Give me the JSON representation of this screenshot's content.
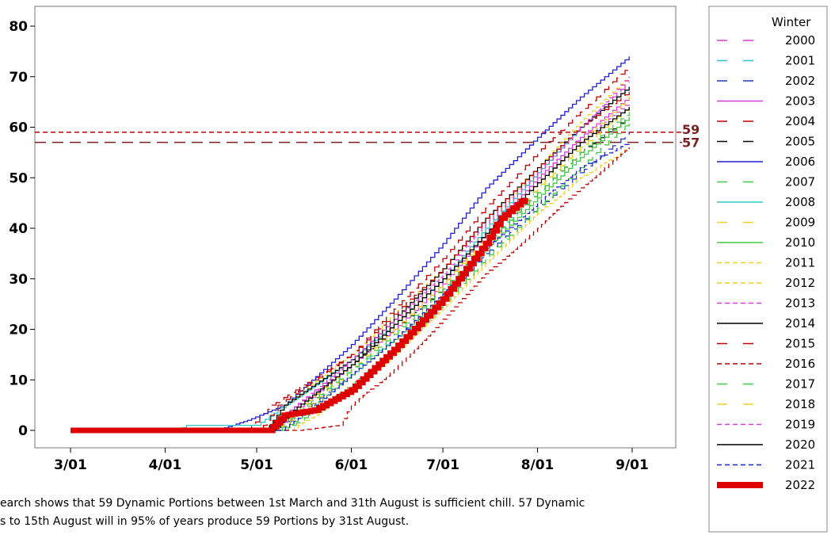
{
  "chart_data": {
    "type": "line",
    "title": "",
    "xlabel": "",
    "ylabel": "",
    "x_ticks": [
      "3/01",
      "4/01",
      "5/01",
      "6/01",
      "7/01",
      "8/01",
      "9/01"
    ],
    "y_ticks": [
      0,
      10,
      20,
      30,
      40,
      50,
      60,
      70,
      80
    ],
    "xlim": [
      "2/20",
      "9/15"
    ],
    "ylim": [
      -5,
      84
    ],
    "grid": false,
    "legend_position": "right",
    "legend_title": "Winter",
    "reference_lines": [
      {
        "value": 59,
        "label": "59",
        "color": "#c00000",
        "style": "short-dash"
      },
      {
        "value": 57,
        "label": "57",
        "color": "#7a1f1f",
        "style": "long-dash"
      }
    ],
    "series": [
      {
        "name": "2000",
        "color": "#d63cd6",
        "style": "long-dash",
        "end_date": "8/31",
        "points": [
          [
            "3/01",
            0
          ],
          [
            "5/06",
            0
          ],
          [
            "5/12",
            4
          ],
          [
            "6/01",
            14
          ],
          [
            "6/15",
            21
          ],
          [
            "7/01",
            30
          ],
          [
            "7/15",
            40
          ],
          [
            "8/01",
            51
          ],
          [
            "8/15",
            60
          ],
          [
            "8/31",
            69
          ]
        ]
      },
      {
        "name": "2001",
        "color": "#2ec7c7",
        "style": "long-dash",
        "end_date": "8/31",
        "points": [
          [
            "3/01",
            0
          ],
          [
            "5/08",
            0
          ],
          [
            "5/15",
            4
          ],
          [
            "6/01",
            12
          ],
          [
            "6/15",
            18
          ],
          [
            "7/01",
            27
          ],
          [
            "7/15",
            37
          ],
          [
            "8/01",
            48
          ],
          [
            "8/15",
            56
          ],
          [
            "8/31",
            64
          ]
        ]
      },
      {
        "name": "2002",
        "color": "#1c3fbf",
        "style": "long-dash",
        "end_date": "8/31",
        "points": [
          [
            "3/01",
            0
          ],
          [
            "5/07",
            0
          ],
          [
            "5/14",
            3
          ],
          [
            "6/01",
            11
          ],
          [
            "6/15",
            18
          ],
          [
            "7/01",
            26
          ],
          [
            "7/15",
            35
          ],
          [
            "8/01",
            44
          ],
          [
            "8/15",
            51
          ],
          [
            "8/31",
            59
          ]
        ]
      },
      {
        "name": "2003",
        "color": "#d63cd6",
        "style": "solid",
        "end_date": "8/31",
        "points": [
          [
            "3/01",
            0
          ],
          [
            "5/07",
            0
          ],
          [
            "5/14",
            4
          ],
          [
            "6/01",
            13
          ],
          [
            "6/15",
            20
          ],
          [
            "7/01",
            29
          ],
          [
            "7/15",
            39
          ],
          [
            "8/01",
            50
          ],
          [
            "8/15",
            58
          ],
          [
            "8/31",
            66
          ]
        ]
      },
      {
        "name": "2004",
        "color": "#c00000",
        "style": "long-dash",
        "end_date": "8/31",
        "points": [
          [
            "3/01",
            0
          ],
          [
            "4/28",
            0
          ],
          [
            "5/06",
            5
          ],
          [
            "6/01",
            15
          ],
          [
            "6/15",
            24
          ],
          [
            "7/01",
            34
          ],
          [
            "7/15",
            44
          ],
          [
            "8/01",
            55
          ],
          [
            "8/15",
            63
          ],
          [
            "8/31",
            72
          ]
        ]
      },
      {
        "name": "2005",
        "color": "#000000",
        "style": "long-dash",
        "end_date": "8/31",
        "points": [
          [
            "3/01",
            0
          ],
          [
            "5/06",
            0
          ],
          [
            "5/14",
            4
          ],
          [
            "6/01",
            13
          ],
          [
            "6/15",
            20
          ],
          [
            "7/01",
            28
          ],
          [
            "7/15",
            37
          ],
          [
            "8/01",
            47
          ],
          [
            "8/15",
            55
          ],
          [
            "8/31",
            62
          ]
        ]
      },
      {
        "name": "2006",
        "color": "#1f1fd6",
        "style": "solid",
        "end_date": "8/31",
        "points": [
          [
            "3/01",
            0
          ],
          [
            "4/18",
            0
          ],
          [
            "4/28",
            2
          ],
          [
            "5/10",
            5
          ],
          [
            "6/01",
            17
          ],
          [
            "6/15",
            26
          ],
          [
            "7/01",
            37
          ],
          [
            "7/15",
            48
          ],
          [
            "8/01",
            58
          ],
          [
            "8/15",
            66
          ],
          [
            "8/31",
            74
          ]
        ]
      },
      {
        "name": "2007",
        "color": "#44c944",
        "style": "long-dash",
        "end_date": "8/31",
        "points": [
          [
            "3/01",
            0
          ],
          [
            "5/10",
            0
          ],
          [
            "5/18",
            3
          ],
          [
            "6/01",
            9
          ],
          [
            "6/15",
            16
          ],
          [
            "7/01",
            25
          ],
          [
            "7/15",
            34
          ],
          [
            "8/01",
            44
          ],
          [
            "8/15",
            52
          ],
          [
            "8/31",
            61
          ]
        ]
      },
      {
        "name": "2008",
        "color": "#2ec7c7",
        "style": "solid",
        "end_date": "8/31",
        "points": [
          [
            "3/01",
            0
          ],
          [
            "4/05",
            0
          ],
          [
            "4/08",
            1
          ],
          [
            "5/01",
            1
          ],
          [
            "5/08",
            4
          ],
          [
            "6/01",
            14
          ],
          [
            "6/15",
            21
          ],
          [
            "7/01",
            30
          ],
          [
            "7/15",
            40
          ],
          [
            "8/01",
            51
          ],
          [
            "8/15",
            60
          ],
          [
            "8/31",
            68
          ]
        ]
      },
      {
        "name": "2009",
        "color": "#f0d020",
        "style": "long-dash",
        "end_date": "8/31",
        "points": [
          [
            "3/01",
            0
          ],
          [
            "5/08",
            0
          ],
          [
            "5/16",
            4
          ],
          [
            "6/01",
            12
          ],
          [
            "6/15",
            20
          ],
          [
            "7/01",
            29
          ],
          [
            "7/15",
            38
          ],
          [
            "8/01",
            48
          ],
          [
            "8/15",
            56
          ],
          [
            "8/31",
            64
          ]
        ]
      },
      {
        "name": "2010",
        "color": "#44c944",
        "style": "solid",
        "end_date": "8/31",
        "points": [
          [
            "3/01",
            0
          ],
          [
            "5/09",
            0
          ],
          [
            "5/16",
            3
          ],
          [
            "6/01",
            11
          ],
          [
            "6/15",
            18
          ],
          [
            "7/01",
            27
          ],
          [
            "7/15",
            36
          ],
          [
            "8/01",
            46
          ],
          [
            "8/15",
            54
          ],
          [
            "8/31",
            62
          ]
        ]
      },
      {
        "name": "2011",
        "color": "#f0d020",
        "style": "short-dash",
        "end_date": "8/31",
        "points": [
          [
            "3/01",
            0
          ],
          [
            "5/12",
            0
          ],
          [
            "5/20",
            3
          ],
          [
            "6/01",
            8
          ],
          [
            "6/15",
            15
          ],
          [
            "7/01",
            24
          ],
          [
            "7/15",
            33
          ],
          [
            "8/01",
            43
          ],
          [
            "8/15",
            50
          ],
          [
            "8/31",
            56
          ]
        ]
      },
      {
        "name": "2012",
        "color": "#f0d020",
        "style": "short-dash",
        "end_date": "8/31",
        "points": [
          [
            "3/01",
            0
          ],
          [
            "5/04",
            0
          ],
          [
            "5/10",
            5
          ],
          [
            "6/01",
            15
          ],
          [
            "6/15",
            23
          ],
          [
            "7/01",
            32
          ],
          [
            "7/15",
            41
          ],
          [
            "8/01",
            52
          ],
          [
            "8/15",
            61
          ],
          [
            "8/31",
            70
          ]
        ]
      },
      {
        "name": "2013",
        "color": "#d63cd6",
        "style": "short-dash",
        "end_date": "8/31",
        "points": [
          [
            "3/01",
            0
          ],
          [
            "5/06",
            0
          ],
          [
            "5/12",
            4
          ],
          [
            "6/01",
            13
          ],
          [
            "6/15",
            21
          ],
          [
            "7/01",
            30
          ],
          [
            "7/15",
            39
          ],
          [
            "8/01",
            49
          ],
          [
            "8/15",
            57
          ],
          [
            "8/31",
            65
          ]
        ]
      },
      {
        "name": "2014",
        "color": "#000000",
        "style": "solid",
        "end_date": "8/31",
        "points": [
          [
            "3/01",
            0
          ],
          [
            "5/04",
            0
          ],
          [
            "5/10",
            5
          ],
          [
            "6/01",
            14
          ],
          [
            "6/15",
            22
          ],
          [
            "7/01",
            32
          ],
          [
            "7/15",
            42
          ],
          [
            "8/01",
            52
          ],
          [
            "8/15",
            60
          ],
          [
            "8/31",
            68
          ]
        ]
      },
      {
        "name": "2015",
        "color": "#c00000",
        "style": "long-dash",
        "end_date": "8/31",
        "points": [
          [
            "3/01",
            0
          ],
          [
            "5/02",
            0
          ],
          [
            "5/08",
            5
          ],
          [
            "6/01",
            15
          ],
          [
            "6/15",
            23
          ],
          [
            "7/01",
            32
          ],
          [
            "7/15",
            42
          ],
          [
            "8/01",
            52
          ],
          [
            "8/15",
            60
          ],
          [
            "8/31",
            67
          ]
        ]
      },
      {
        "name": "2016",
        "color": "#c00000",
        "style": "short-dash",
        "end_date": "8/31",
        "points": [
          [
            "3/01",
            0
          ],
          [
            "5/15",
            0
          ],
          [
            "5/28",
            1
          ],
          [
            "6/01",
            5
          ],
          [
            "6/15",
            12
          ],
          [
            "7/01",
            22
          ],
          [
            "7/15",
            31
          ],
          [
            "8/01",
            40
          ],
          [
            "8/15",
            48
          ],
          [
            "8/31",
            56
          ]
        ]
      },
      {
        "name": "2017",
        "color": "#44c944",
        "style": "long-dash",
        "end_date": "8/31",
        "points": [
          [
            "3/01",
            0
          ],
          [
            "5/08",
            0
          ],
          [
            "5/15",
            4
          ],
          [
            "6/01",
            12
          ],
          [
            "6/15",
            19
          ],
          [
            "7/01",
            28
          ],
          [
            "7/15",
            37
          ],
          [
            "8/01",
            47
          ],
          [
            "8/15",
            55
          ],
          [
            "8/31",
            63
          ]
        ]
      },
      {
        "name": "2018",
        "color": "#f0d020",
        "style": "long-dash",
        "end_date": "8/31",
        "points": [
          [
            "3/01",
            0
          ],
          [
            "5/07",
            0
          ],
          [
            "5/14",
            4
          ],
          [
            "6/01",
            13
          ],
          [
            "6/15",
            21
          ],
          [
            "7/01",
            30
          ],
          [
            "7/15",
            39
          ],
          [
            "8/01",
            49
          ],
          [
            "8/15",
            57
          ],
          [
            "8/31",
            66
          ]
        ]
      },
      {
        "name": "2019",
        "color": "#d63cd6",
        "style": "short-dash",
        "end_date": "8/31",
        "points": [
          [
            "3/01",
            0
          ],
          [
            "5/05",
            0
          ],
          [
            "5/12",
            4
          ],
          [
            "6/01",
            14
          ],
          [
            "6/15",
            22
          ],
          [
            "7/01",
            31
          ],
          [
            "7/15",
            41
          ],
          [
            "8/01",
            51
          ],
          [
            "8/15",
            60
          ],
          [
            "8/31",
            70
          ]
        ]
      },
      {
        "name": "2020",
        "color": "#000000",
        "style": "solid",
        "end_date": "8/31",
        "points": [
          [
            "3/01",
            0
          ],
          [
            "5/06",
            0
          ],
          [
            "5/13",
            4
          ],
          [
            "6/01",
            13
          ],
          [
            "6/15",
            21
          ],
          [
            "7/01",
            30
          ],
          [
            "7/15",
            39
          ],
          [
            "8/01",
            49
          ],
          [
            "8/15",
            57
          ],
          [
            "8/31",
            64
          ]
        ]
      },
      {
        "name": "2021",
        "color": "#1f1fd6",
        "style": "short-dash",
        "end_date": "8/31",
        "points": [
          [
            "3/01",
            0
          ],
          [
            "5/09",
            0
          ],
          [
            "5/16",
            3
          ],
          [
            "6/01",
            11
          ],
          [
            "6/15",
            18
          ],
          [
            "7/01",
            27
          ],
          [
            "7/15",
            36
          ],
          [
            "8/01",
            45
          ],
          [
            "8/15",
            52
          ],
          [
            "8/31",
            57
          ]
        ]
      },
      {
        "name": "2022",
        "color": "#dd0000",
        "style": "thick",
        "end_date": "7/28",
        "points": [
          [
            "3/01",
            0
          ],
          [
            "5/05",
            0
          ],
          [
            "5/10",
            3
          ],
          [
            "5/20",
            4
          ],
          [
            "6/01",
            8
          ],
          [
            "6/15",
            16
          ],
          [
            "7/01",
            26
          ],
          [
            "7/15",
            37
          ],
          [
            "7/20",
            42
          ],
          [
            "7/28",
            46
          ]
        ]
      }
    ]
  },
  "footnote": {
    "line1": "earch shows that 59 Dynamic Portions between 1st March and 31th August is sufficient chill. 57 Dynamic",
    "line2": "s to 15th August will in 95% of years produce 59 Portions by 31st August."
  }
}
